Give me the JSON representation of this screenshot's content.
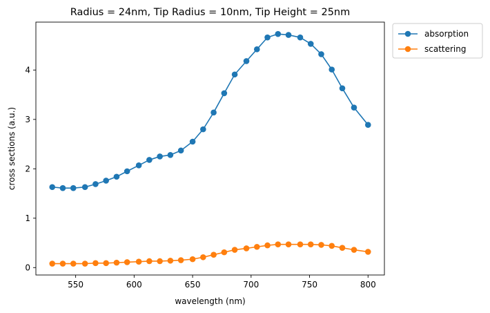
{
  "chart_data": {
    "type": "line",
    "title": "Radius = 24nm, Tip Radius = 10nm, Tip Height = 25nm",
    "xlabel": "wavelength (nm)",
    "ylabel": "cross sections (a.u.)",
    "xlim": [
      516,
      814
    ],
    "ylim": [
      -0.15,
      4.97
    ],
    "xticks": [
      550,
      600,
      650,
      700,
      750,
      800
    ],
    "yticks": [
      0,
      1,
      2,
      3,
      4
    ],
    "grid": false,
    "legend_position": "outside-top-right",
    "x": [
      530,
      539,
      548,
      558,
      567,
      576,
      585,
      594,
      604,
      613,
      622,
      631,
      640,
      650,
      659,
      668,
      677,
      686,
      696,
      705,
      714,
      723,
      732,
      742,
      751,
      760,
      769,
      778,
      788,
      800
    ],
    "series": [
      {
        "name": "absorption",
        "color": "#1f77b4",
        "values": [
          1.63,
          1.61,
          1.61,
          1.63,
          1.69,
          1.76,
          1.84,
          1.95,
          2.07,
          2.18,
          2.25,
          2.28,
          2.37,
          2.55,
          2.8,
          3.14,
          3.53,
          3.91,
          4.18,
          4.42,
          4.66,
          4.73,
          4.71,
          4.66,
          4.53,
          4.32,
          4.01,
          3.63,
          3.24,
          2.89
        ]
      },
      {
        "name": "scattering",
        "color": "#ff7f0e",
        "values": [
          0.08,
          0.08,
          0.08,
          0.08,
          0.09,
          0.09,
          0.1,
          0.11,
          0.12,
          0.13,
          0.13,
          0.14,
          0.15,
          0.17,
          0.21,
          0.26,
          0.31,
          0.36,
          0.39,
          0.42,
          0.45,
          0.47,
          0.47,
          0.47,
          0.47,
          0.46,
          0.44,
          0.4,
          0.36,
          0.32
        ]
      }
    ]
  }
}
